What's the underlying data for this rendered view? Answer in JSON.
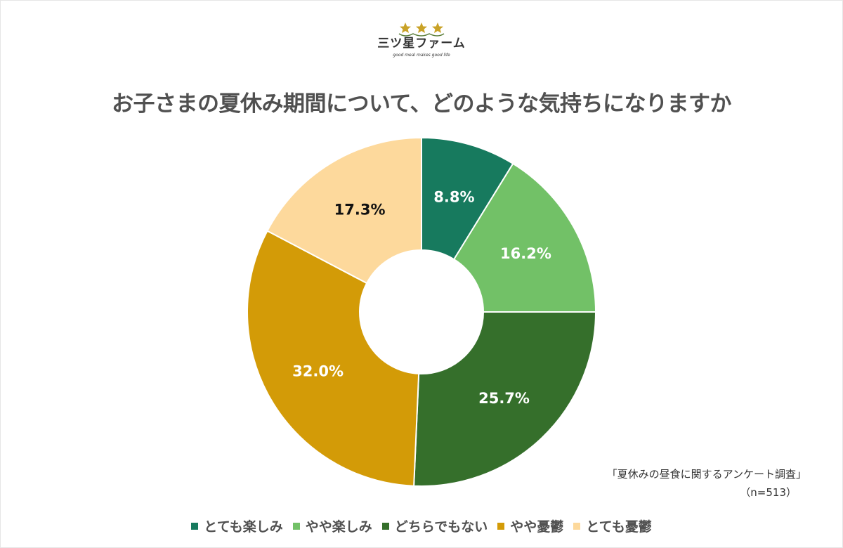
{
  "logo": {
    "name": "三ツ星ファーム",
    "tagline": "good meal makes good life",
    "star_color": "#c9a227"
  },
  "title": "お子さまの夏休み期間について、どのような気持ちになりますか",
  "source": {
    "survey": "「夏休みの昼食に関するアンケート調査」",
    "sample": "（n=513）"
  },
  "legend": [
    {
      "label": "とても楽しみ",
      "color": "#177a5e"
    },
    {
      "label": "やや楽しみ",
      "color": "#72c167"
    },
    {
      "label": "どちらでもない",
      "color": "#356f2b"
    },
    {
      "label": "やや憂鬱",
      "color": "#d39b07"
    },
    {
      "label": "とても憂鬱",
      "color": "#fdd99c"
    }
  ],
  "chart_data": {
    "type": "pie",
    "subtype": "donut",
    "title": "お子さまの夏休み期間について、どのような気持ちになりますか",
    "categories": [
      "とても楽しみ",
      "やや楽しみ",
      "どちらでもない",
      "やや憂鬱",
      "とても憂鬱"
    ],
    "values": [
      8.8,
      16.2,
      25.7,
      32.0,
      17.3
    ],
    "labels": [
      "8.8%",
      "16.2%",
      "25.7%",
      "32.0%",
      "17.3%"
    ],
    "colors": [
      "#177a5e",
      "#72c167",
      "#356f2b",
      "#d39b07",
      "#fdd99c"
    ],
    "label_colors": [
      "#ffffff",
      "#ffffff",
      "#ffffff",
      "#ffffff",
      "#111111"
    ],
    "start_angle": "12 o'clock",
    "direction": "clockwise",
    "legend_position": "bottom",
    "unit": "%",
    "n": 513
  }
}
